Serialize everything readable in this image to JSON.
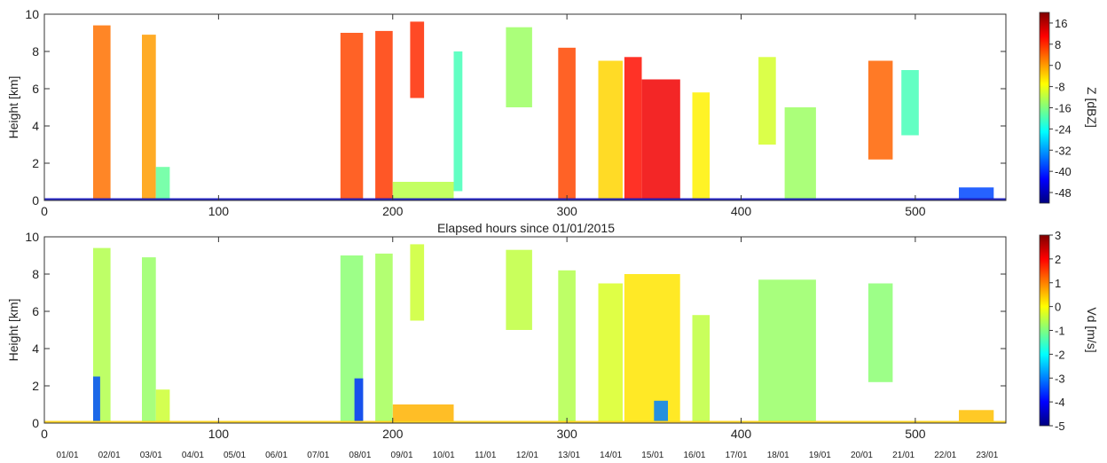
{
  "chart_data": [
    {
      "type": "heatmap",
      "ylabel": "Height [km]",
      "xlabel": "Elapsed hours since 01/01/2015",
      "xlim": [
        0,
        552
      ],
      "ylim": [
        0,
        10
      ],
      "x_ticks": [
        "0",
        "100",
        "200",
        "300",
        "400",
        "500"
      ],
      "x_tick_values": [
        0,
        100,
        200,
        300,
        400,
        500
      ],
      "y_ticks": [
        "0",
        "2",
        "4",
        "6",
        "8",
        "10"
      ],
      "y_tick_values": [
        0,
        2,
        4,
        6,
        8,
        10
      ],
      "colorbar": {
        "label": "Z [dBZ]",
        "range": [
          -52,
          20
        ],
        "ticks": [
          "16",
          "8",
          "0",
          "-8",
          "-16",
          "-24",
          "-32",
          "-40",
          "-48"
        ],
        "tick_values": [
          16,
          8,
          0,
          -8,
          -16,
          -24,
          -32,
          -40,
          -48
        ]
      },
      "colormap": "jet",
      "features": [
        {
          "x": [
            28,
            38
          ],
          "y": [
            0.1,
            9.4
          ],
          "value": 3
        },
        {
          "x": [
            56,
            64
          ],
          "y": [
            0.1,
            8.9
          ],
          "value": 0
        },
        {
          "x": [
            64,
            72
          ],
          "y": [
            0.1,
            1.8
          ],
          "value": -18
        },
        {
          "x": [
            170,
            183
          ],
          "y": [
            0.1,
            9.0
          ],
          "value": 6
        },
        {
          "x": [
            190,
            200
          ],
          "y": [
            0.1,
            9.1
          ],
          "value": 7
        },
        {
          "x": [
            210,
            218
          ],
          "y": [
            5.5,
            9.6
          ],
          "value": 8
        },
        {
          "x": [
            200,
            235
          ],
          "y": [
            0.1,
            1.0
          ],
          "value": -12
        },
        {
          "x": [
            235,
            240
          ],
          "y": [
            0.5,
            8.0
          ],
          "value": -20
        },
        {
          "x": [
            265,
            280
          ],
          "y": [
            5.0,
            9.3
          ],
          "value": -14
        },
        {
          "x": [
            295,
            305
          ],
          "y": [
            0.1,
            8.2
          ],
          "value": 6
        },
        {
          "x": [
            318,
            332
          ],
          "y": [
            0.1,
            7.5
          ],
          "value": -4
        },
        {
          "x": [
            333,
            343
          ],
          "y": [
            0.1,
            7.7
          ],
          "value": 10
        },
        {
          "x": [
            343,
            365
          ],
          "y": [
            0.1,
            6.5
          ],
          "value": 12
        },
        {
          "x": [
            372,
            382
          ],
          "y": [
            0.1,
            5.8
          ],
          "value": -6
        },
        {
          "x": [
            410,
            420
          ],
          "y": [
            3.0,
            7.7
          ],
          "value": -10
        },
        {
          "x": [
            425,
            443
          ],
          "y": [
            0.1,
            5.0
          ],
          "value": -14
        },
        {
          "x": [
            473,
            487
          ],
          "y": [
            2.2,
            7.5
          ],
          "value": 4
        },
        {
          "x": [
            492,
            502
          ],
          "y": [
            3.5,
            7.0
          ],
          "value": -20
        },
        {
          "x": [
            525,
            545
          ],
          "y": [
            0.1,
            0.7
          ],
          "value": -38
        },
        {
          "x": [
            0,
            552
          ],
          "y": [
            0.0,
            0.12
          ],
          "value": -48
        }
      ]
    },
    {
      "type": "heatmap",
      "ylabel": "Height [km]",
      "xlim": [
        0,
        552
      ],
      "ylim": [
        0,
        10
      ],
      "x_ticks": [
        "0",
        "100",
        "200",
        "300",
        "400",
        "500"
      ],
      "x_tick_values": [
        0,
        100,
        200,
        300,
        400,
        500
      ],
      "y_ticks": [
        "0",
        "2",
        "4",
        "6",
        "8",
        "10"
      ],
      "y_tick_values": [
        0,
        2,
        4,
        6,
        8,
        10
      ],
      "date_ticks": [
        "01/01",
        "02/01",
        "03/01",
        "04/01",
        "05/01",
        "06/01",
        "07/01",
        "08/01",
        "09/01",
        "10/01",
        "11/01",
        "12/01",
        "13/01",
        "14/01",
        "15/01",
        "16/01",
        "17/01",
        "18/01",
        "19/01",
        "20/01",
        "21/01",
        "22/01",
        "23/01"
      ],
      "date_tick_values": [
        0,
        24,
        48,
        72,
        96,
        120,
        144,
        168,
        192,
        216,
        240,
        264,
        288,
        312,
        336,
        360,
        384,
        408,
        432,
        456,
        480,
        504,
        528
      ],
      "colorbar": {
        "label": "Vd [m/s]",
        "range": [
          -5,
          3
        ],
        "ticks": [
          "3",
          "2",
          "1",
          "0",
          "-1",
          "-2",
          "-3",
          "-4",
          "-5"
        ],
        "tick_values": [
          3,
          2,
          1,
          0,
          -1,
          -2,
          -3,
          -4,
          -5
        ]
      },
      "colormap": "jet",
      "features": [
        {
          "x": [
            28,
            38
          ],
          "y": [
            0.1,
            9.4
          ],
          "value": -0.6
        },
        {
          "x": [
            28,
            32
          ],
          "y": [
            0.1,
            2.5
          ],
          "value": -3.4
        },
        {
          "x": [
            56,
            64
          ],
          "y": [
            0.1,
            8.9
          ],
          "value": -0.8
        },
        {
          "x": [
            64,
            72
          ],
          "y": [
            0.1,
            1.8
          ],
          "value": -0.4
        },
        {
          "x": [
            170,
            183
          ],
          "y": [
            0.1,
            9.0
          ],
          "value": -0.9
        },
        {
          "x": [
            178,
            183
          ],
          "y": [
            0.1,
            2.4
          ],
          "value": -3.6
        },
        {
          "x": [
            190,
            200
          ],
          "y": [
            0.1,
            9.1
          ],
          "value": -0.7
        },
        {
          "x": [
            210,
            218
          ],
          "y": [
            5.5,
            9.6
          ],
          "value": -0.4
        },
        {
          "x": [
            200,
            235
          ],
          "y": [
            0.1,
            1.0
          ],
          "value": 0.6
        },
        {
          "x": [
            265,
            280
          ],
          "y": [
            5.0,
            9.3
          ],
          "value": -0.5
        },
        {
          "x": [
            295,
            305
          ],
          "y": [
            0.1,
            8.2
          ],
          "value": -0.6
        },
        {
          "x": [
            318,
            332
          ],
          "y": [
            0.1,
            7.5
          ],
          "value": -0.3
        },
        {
          "x": [
            333,
            365
          ],
          "y": [
            0.1,
            8.0
          ],
          "value": 0.2
        },
        {
          "x": [
            350,
            358
          ],
          "y": [
            0.1,
            1.2
          ],
          "value": -3.0
        },
        {
          "x": [
            372,
            382
          ],
          "y": [
            0.1,
            5.8
          ],
          "value": -0.5
        },
        {
          "x": [
            410,
            443
          ],
          "y": [
            0.1,
            7.7
          ],
          "value": -0.8
        },
        {
          "x": [
            473,
            487
          ],
          "y": [
            2.2,
            7.5
          ],
          "value": -0.9
        },
        {
          "x": [
            525,
            545
          ],
          "y": [
            0.1,
            0.7
          ],
          "value": 0.5
        },
        {
          "x": [
            0,
            552
          ],
          "y": [
            0.0,
            0.12
          ],
          "value": 0.4
        }
      ]
    }
  ]
}
